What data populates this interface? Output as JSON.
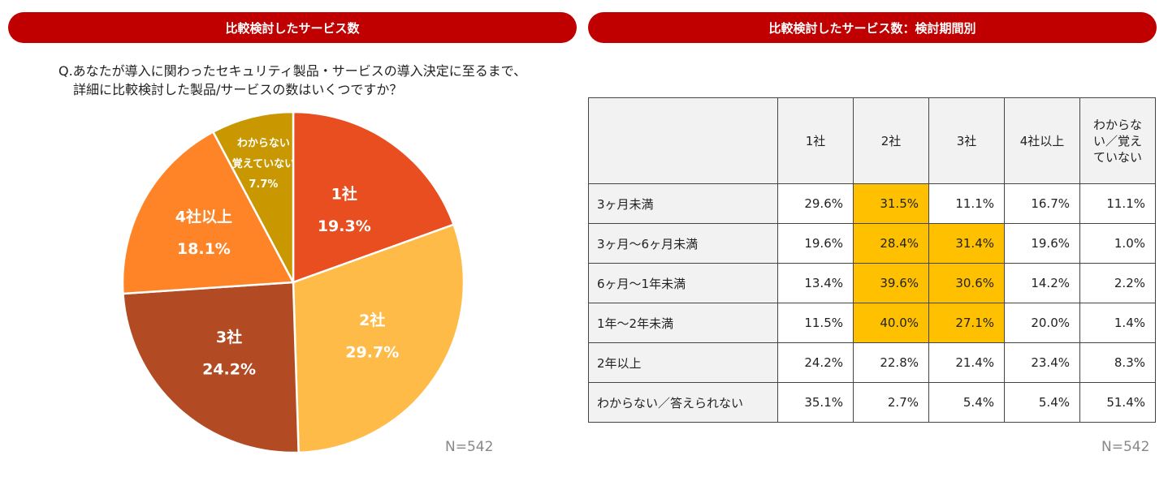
{
  "left_panel": {
    "banner": "比較検討したサービス数",
    "question_line1": "Q.あなたが導入に関わったセキュリティ製品・サービスの導入決定に至るまで、",
    "question_line2": "詳細に比較検討した製品/サービスの数はいくつですか？",
    "n": "N=542"
  },
  "right_panel": {
    "banner": "比較検討したサービス数：検討期間別",
    "n": "N=542"
  },
  "chart_data": [
    {
      "type": "pie",
      "slices": [
        {
          "label": "1社",
          "value": 19.3,
          "value_label": "19.3%",
          "color": "#e84e1f"
        },
        {
          "label": "2社",
          "value": 29.7,
          "value_label": "29.7%",
          "color": "#ffbb47"
        },
        {
          "label": "3社",
          "value": 24.2,
          "value_label": "24.2%",
          "color": "#b24a23"
        },
        {
          "label": "4社以上",
          "value": 18.1,
          "value_label": "18.1%",
          "color": "#ff8427"
        },
        {
          "label": "わからない 覚えていない",
          "label_lines": [
            "わからない",
            "覚えていない"
          ],
          "value": 7.7,
          "value_label": "7.7%",
          "color": "#c99700"
        }
      ]
    },
    {
      "type": "table",
      "columns": [
        "1社",
        "2社",
        "3社",
        "4社以上",
        "わからない／覚えていない"
      ],
      "column_lines": [
        [
          "1社"
        ],
        [
          "2社"
        ],
        [
          "3社"
        ],
        [
          "4社以上"
        ],
        [
          "わからな",
          "い／覚え",
          "ていない"
        ]
      ],
      "highlight_color": "#ffc000",
      "rows": [
        {
          "label": "3ヶ月未満",
          "values": [
            "29.6%",
            "31.5%",
            "11.1%",
            "16.7%",
            "11.1%"
          ],
          "highlight": [
            false,
            true,
            false,
            false,
            false
          ]
        },
        {
          "label": "3ヶ月～6ヶ月未満",
          "values": [
            "19.6%",
            "28.4%",
            "31.4%",
            "19.6%",
            "1.0%"
          ],
          "highlight": [
            false,
            true,
            true,
            false,
            false
          ]
        },
        {
          "label": "6ヶ月～1年未満",
          "values": [
            "13.4%",
            "39.6%",
            "30.6%",
            "14.2%",
            "2.2%"
          ],
          "highlight": [
            false,
            true,
            true,
            false,
            false
          ]
        },
        {
          "label": "1年～2年未満",
          "values": [
            "11.5%",
            "40.0%",
            "27.1%",
            "20.0%",
            "1.4%"
          ],
          "highlight": [
            false,
            true,
            true,
            false,
            false
          ]
        },
        {
          "label": "2年以上",
          "values": [
            "24.2%",
            "22.8%",
            "21.4%",
            "23.4%",
            "8.3%"
          ],
          "highlight": [
            false,
            false,
            false,
            false,
            false
          ]
        },
        {
          "label": "わからない／答えられない",
          "values": [
            "35.1%",
            "2.7%",
            "5.4%",
            "5.4%",
            "51.4%"
          ],
          "highlight": [
            false,
            false,
            false,
            false,
            false
          ]
        }
      ]
    }
  ]
}
